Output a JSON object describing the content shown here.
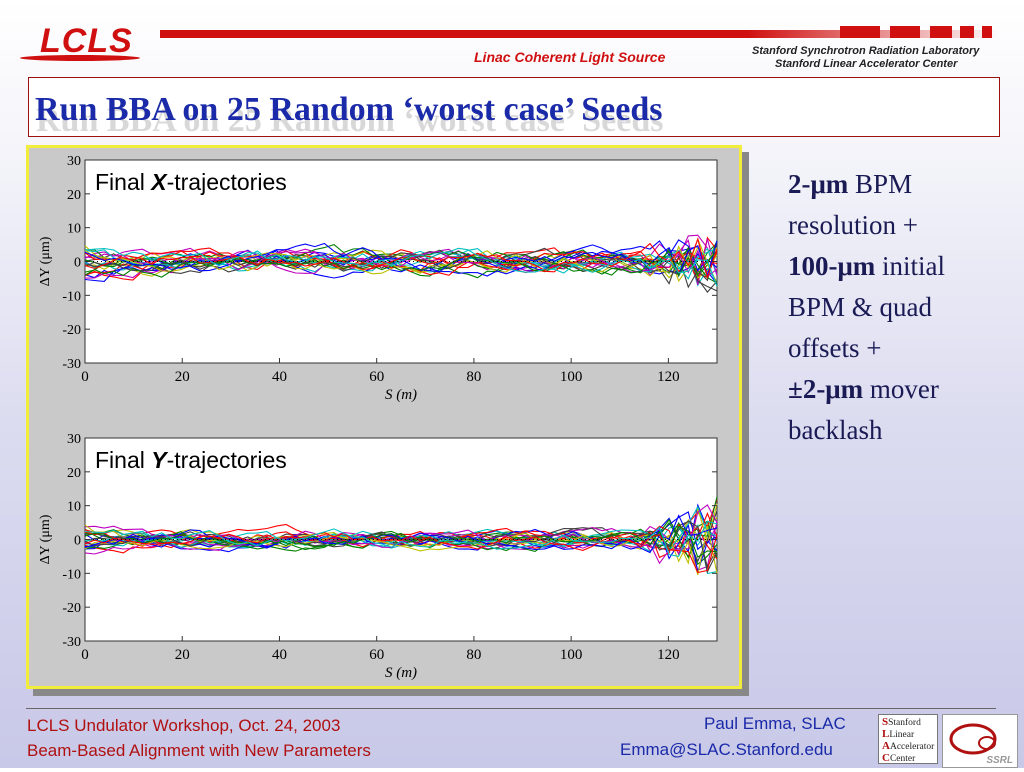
{
  "header": {
    "logo": "LCLS",
    "tagline": "Linac Coherent Light Source",
    "lab_line1": "Stanford Synchrotron Radiation Laboratory",
    "lab_line2": "Stanford Linear Accelerator Center"
  },
  "slide": {
    "title": "Run BBA on 25 Random ‘worst case’ Seeds"
  },
  "sidebar_text": {
    "l1_bold": "2-μm",
    "l1_rest": " BPM",
    "l2": "resolution +",
    "l3_bold": "100-μm",
    "l3_rest": " initial",
    "l4": "BPM & quad",
    "l5": "offsets +",
    "l6_bold": "±2-μm",
    "l6_rest": " mover",
    "l7": "backlash"
  },
  "footer": {
    "left1": "LCLS Undulator Workshop, Oct. 24, 2003",
    "left2": "Beam-Based Alignment with New Parameters",
    "right1": "Paul Emma, SLAC",
    "right2": "Emma@SLAC.Stanford.edu",
    "slac_logo_lines": [
      "Stanford",
      "Linear",
      "Accelerator",
      "Center"
    ],
    "ssrl_logo": "SSRL"
  },
  "chart_data": [
    {
      "type": "line",
      "title_prefix": "Final ",
      "title_var": "X",
      "title_suffix": "-trajectories",
      "xlabel": "S (m)",
      "ylabel": "ΔY (μm)",
      "xlim": [
        0,
        130
      ],
      "ylim": [
        -30,
        30
      ],
      "xticks": [
        0,
        20,
        40,
        60,
        80,
        100,
        120
      ],
      "yticks": [
        30,
        20,
        10,
        0,
        -10,
        -20,
        -30
      ],
      "n_series": 25,
      "amplitude_um": 5,
      "end_spread_um": 10
    },
    {
      "type": "line",
      "title_prefix": "Final ",
      "title_var": "Y",
      "title_suffix": "-trajectories",
      "xlabel": "S (m)",
      "ylabel": "ΔY (μm)",
      "xlim": [
        0,
        130
      ],
      "ylim": [
        -30,
        30
      ],
      "xticks": [
        0,
        20,
        40,
        60,
        80,
        100,
        120
      ],
      "yticks": [
        30,
        20,
        10,
        0,
        -10,
        -20,
        -30
      ],
      "n_series": 25,
      "amplitude_um": 4,
      "end_spread_um": 14
    }
  ],
  "colors": {
    "series": [
      "#0000ff",
      "#008000",
      "#ff0000",
      "#00bfbf",
      "#bf00bf",
      "#bfbf00",
      "#404040"
    ],
    "accent_red": "#d01010",
    "title_blue": "#1a2aa8"
  }
}
